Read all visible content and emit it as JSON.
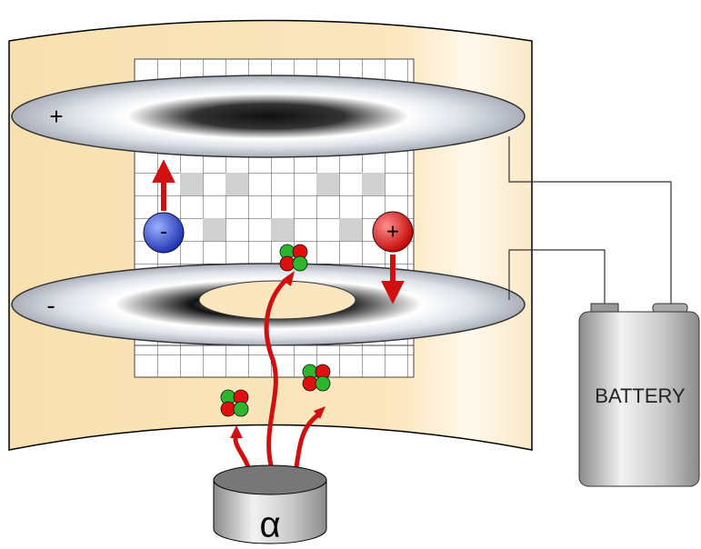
{
  "plates": {
    "top_label": "+",
    "bottom_label": "-"
  },
  "ions": {
    "negative": "-",
    "positive": "+"
  },
  "battery": {
    "label": "BATTERY"
  },
  "source": {
    "label": "α"
  }
}
